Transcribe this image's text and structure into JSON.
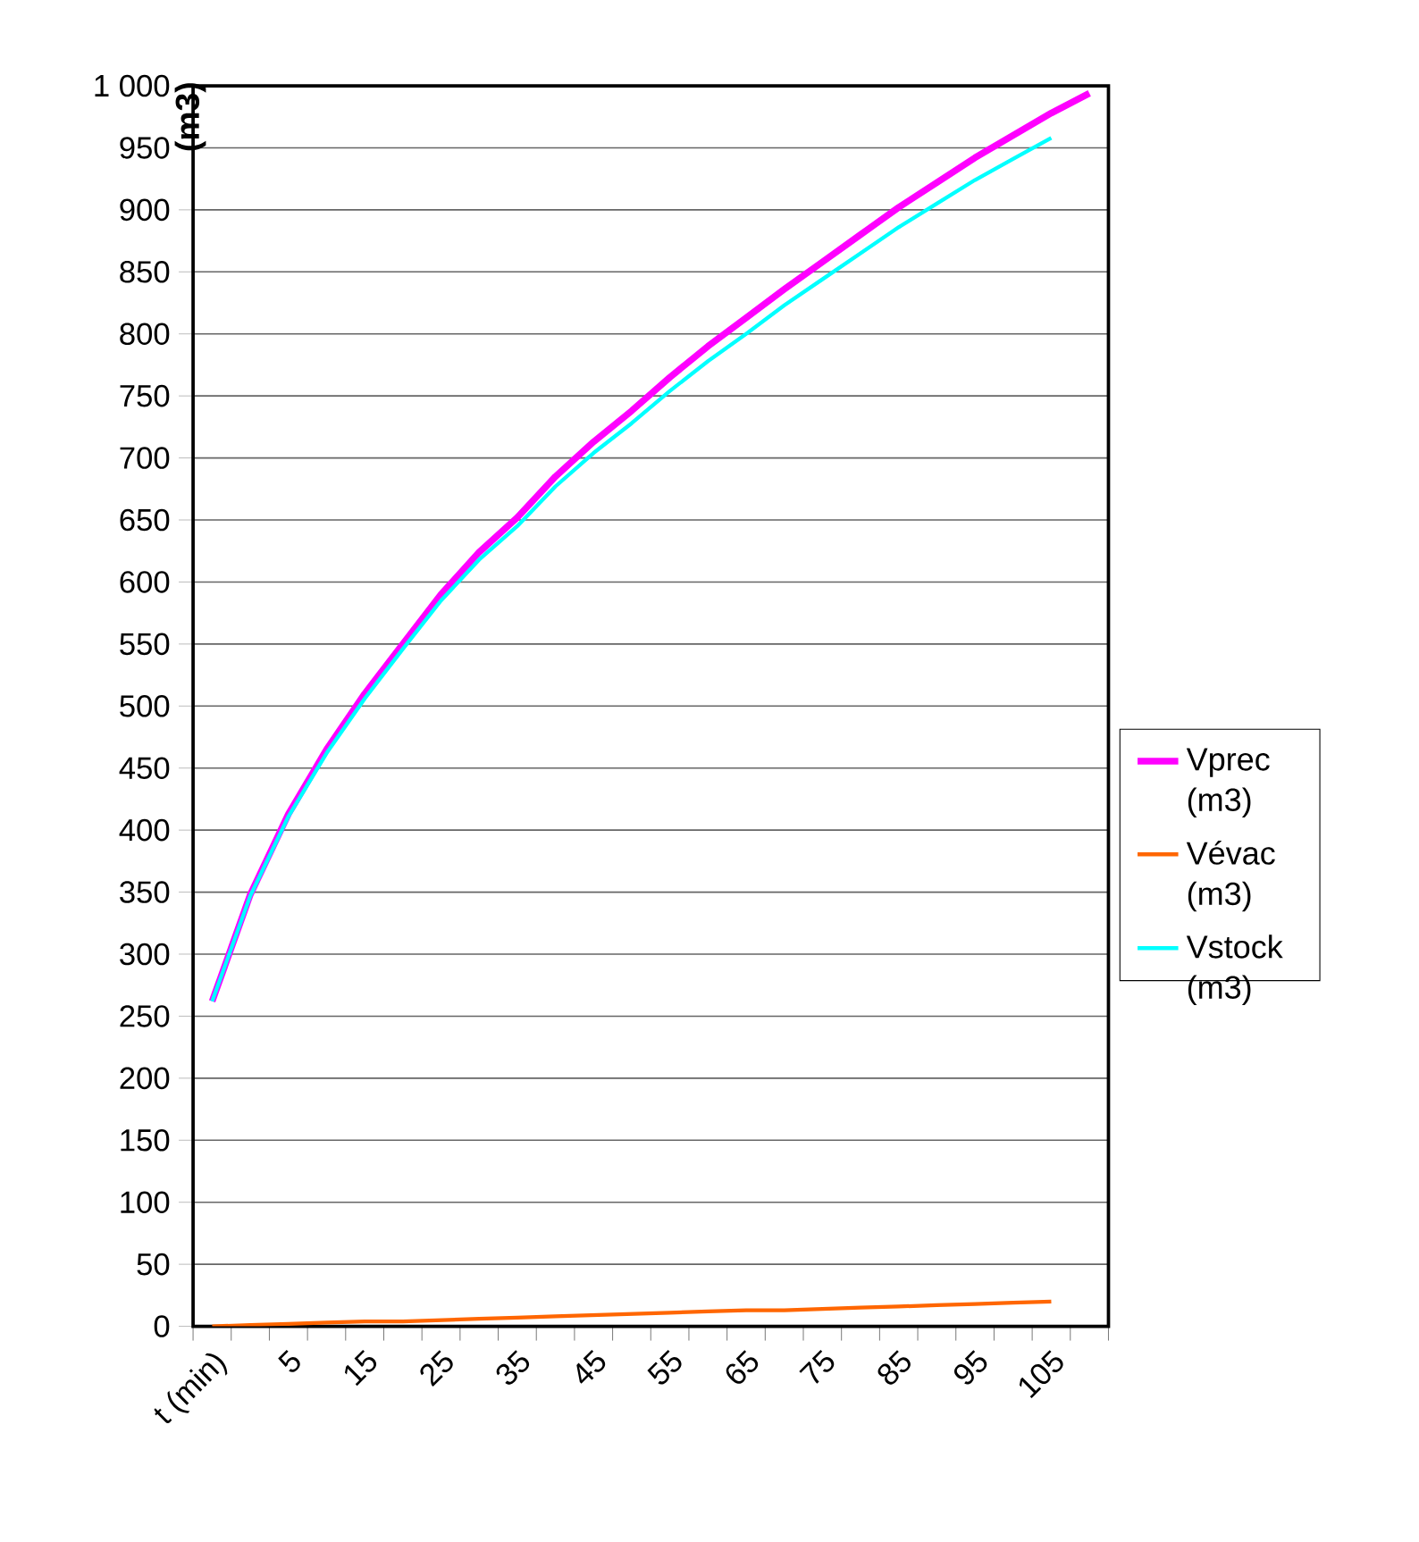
{
  "chart_data": {
    "type": "line",
    "ylabel": "(m3)",
    "categories": [
      "t (min)",
      null,
      "5",
      null,
      "15",
      null,
      "25",
      null,
      "35",
      null,
      "45",
      null,
      "55",
      null,
      "65",
      null,
      "75",
      null,
      "85",
      null,
      "95",
      null,
      "105",
      null
    ],
    "series": [
      {
        "name": "Vprec (m3)",
        "color": "#ff00ff",
        "values": [
          262,
          348,
          413,
          465,
          510,
          550,
          590,
          624,
          652,
          685,
          713,
          738,
          765,
          790,
          813,
          836,
          858,
          880,
          902,
          922,
          942,
          960,
          978,
          994
        ]
      },
      {
        "name": "Vévac (m3)",
        "color": "#ff6600",
        "values": [
          0,
          1,
          2,
          3,
          4,
          4,
          5,
          6,
          7,
          8,
          9,
          10,
          11,
          12,
          13,
          13,
          14,
          15,
          16,
          17,
          18,
          19,
          20,
          null
        ]
      },
      {
        "name": "Vstock (m3)",
        "color": "#00ffff",
        "values": [
          262,
          347,
          411,
          462,
          506,
          546,
          585,
          618,
          645,
          677,
          704,
          728,
          754,
          778,
          800,
          823,
          844,
          865,
          886,
          905,
          924,
          941,
          958,
          null
        ]
      }
    ],
    "ylim": [
      0,
      1000
    ],
    "yticks": [
      0,
      50,
      100,
      150,
      200,
      250,
      300,
      350,
      400,
      450,
      500,
      550,
      600,
      650,
      700,
      750,
      800,
      850,
      900,
      950,
      {
        "value": 1000,
        "label": "1 000"
      }
    ],
    "grid": "y",
    "legend": "right",
    "marker": "none",
    "line_style": "solid"
  }
}
